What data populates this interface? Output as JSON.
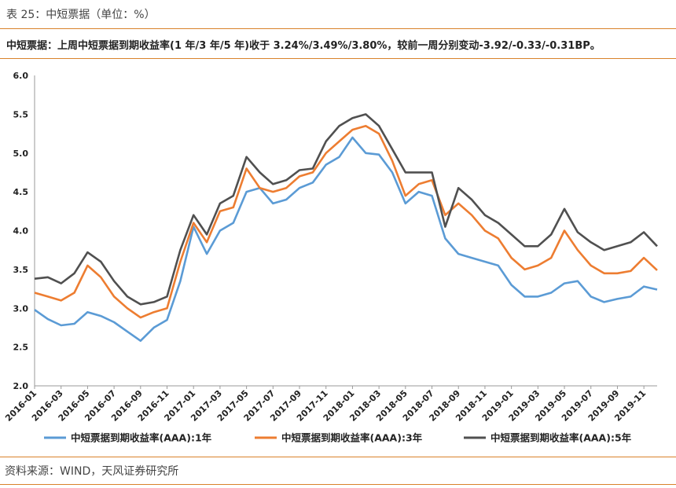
{
  "header": {
    "caption": "表 25：中短票据（单位：%）",
    "summary": "中短票据：上周中短票据到期收益率(1 年/3 年/5 年)收于 3.24%/3.49%/3.80%，较前一周分别变动-3.92/-0.33/-0.31BP。"
  },
  "footer": {
    "source": "资料来源：WIND，天风证券研究所"
  },
  "colors": {
    "accent": "#d9822b",
    "s1": "#5b9bd5",
    "s3": "#ed7d31",
    "s5": "#505050"
  },
  "chart_data": {
    "type": "line",
    "title": "",
    "xlabel": "",
    "ylabel": "",
    "ylim": [
      2.0,
      6.0
    ],
    "yticks": [
      "6.0",
      "5.5",
      "5.0",
      "4.5",
      "4.0",
      "3.5",
      "3.0",
      "2.5",
      "2.0"
    ],
    "xlim": [
      "2016-01",
      "2019-12"
    ],
    "xticks": [
      "2016-01",
      "2016-03",
      "2016-05",
      "2016-07",
      "2016-09",
      "2016-11",
      "2017-01",
      "2017-03",
      "2017-05",
      "2017-07",
      "2017-09",
      "2017-11",
      "2018-01",
      "2018-03",
      "2018-05",
      "2018-07",
      "2018-09",
      "2018-11",
      "2019-01",
      "2019-03",
      "2019-05",
      "2019-07",
      "2019-09",
      "2019-11"
    ],
    "grid": false,
    "legend_position": "bottom",
    "x": [
      "2016-01",
      "2016-02",
      "2016-03",
      "2016-04",
      "2016-05",
      "2016-06",
      "2016-07",
      "2016-08",
      "2016-09",
      "2016-10",
      "2016-11",
      "2016-12",
      "2017-01",
      "2017-02",
      "2017-03",
      "2017-04",
      "2017-05",
      "2017-06",
      "2017-07",
      "2017-08",
      "2017-09",
      "2017-10",
      "2017-11",
      "2017-12",
      "2018-01",
      "2018-02",
      "2018-03",
      "2018-04",
      "2018-05",
      "2018-06",
      "2018-07",
      "2018-08",
      "2018-09",
      "2018-10",
      "2018-11",
      "2018-12",
      "2019-01",
      "2019-02",
      "2019-03",
      "2019-04",
      "2019-05",
      "2019-06",
      "2019-07",
      "2019-08",
      "2019-09",
      "2019-10",
      "2019-11",
      "2019-12"
    ],
    "series": [
      {
        "name": "中短票据到期收益率(AAA):1年",
        "color": "#5b9bd5",
        "values": [
          2.98,
          2.86,
          2.78,
          2.8,
          2.95,
          2.9,
          2.82,
          2.7,
          2.58,
          2.75,
          2.85,
          3.35,
          4.05,
          3.7,
          4.0,
          4.1,
          4.5,
          4.55,
          4.35,
          4.4,
          4.55,
          4.62,
          4.85,
          4.95,
          5.2,
          5.0,
          4.98,
          4.75,
          4.35,
          4.5,
          4.45,
          3.9,
          3.7,
          3.65,
          3.6,
          3.55,
          3.3,
          3.15,
          3.15,
          3.2,
          3.32,
          3.35,
          3.15,
          3.08,
          3.12,
          3.15,
          3.28,
          3.24
        ]
      },
      {
        "name": "中短票据到期收益率(AAA):3年",
        "color": "#ed7d31",
        "values": [
          3.2,
          3.15,
          3.1,
          3.2,
          3.55,
          3.4,
          3.15,
          3.0,
          2.88,
          2.95,
          3.0,
          3.6,
          4.1,
          3.85,
          4.25,
          4.3,
          4.8,
          4.55,
          4.5,
          4.55,
          4.7,
          4.75,
          5.0,
          5.15,
          5.3,
          5.35,
          5.25,
          4.9,
          4.45,
          4.6,
          4.65,
          4.2,
          4.35,
          4.2,
          4.0,
          3.9,
          3.65,
          3.5,
          3.55,
          3.65,
          4.0,
          3.75,
          3.55,
          3.45,
          3.45,
          3.48,
          3.65,
          3.49
        ]
      },
      {
        "name": "中短票据到期收益率(AAA):5年",
        "color": "#505050",
        "values": [
          3.38,
          3.4,
          3.32,
          3.45,
          3.72,
          3.6,
          3.35,
          3.15,
          3.05,
          3.08,
          3.15,
          3.75,
          4.2,
          3.95,
          4.35,
          4.45,
          4.95,
          4.75,
          4.6,
          4.65,
          4.78,
          4.8,
          5.15,
          5.35,
          5.45,
          5.5,
          5.35,
          5.05,
          4.75,
          4.75,
          4.75,
          4.05,
          4.55,
          4.4,
          4.2,
          4.1,
          3.95,
          3.8,
          3.8,
          3.95,
          4.28,
          3.98,
          3.85,
          3.75,
          3.8,
          3.85,
          3.98,
          3.8
        ]
      }
    ]
  }
}
